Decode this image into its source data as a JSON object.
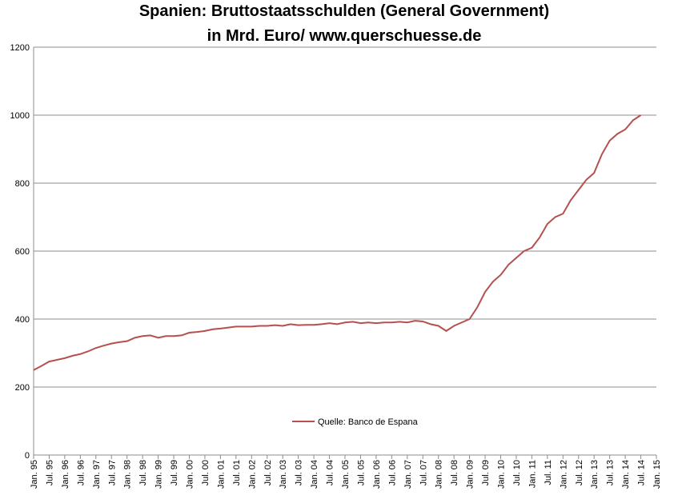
{
  "chart_data": {
    "type": "line",
    "title": [
      "Spanien: Bruttostaatsschulden (General Government)",
      "in Mrd. Euro/ www.querschuesse.de"
    ],
    "categories": [
      "Jan. 95",
      null,
      "Jul. 95",
      null,
      "Jan. 96",
      null,
      "Jul. 96",
      null,
      "Jan. 97",
      null,
      "Jul. 97",
      null,
      "Jan. 98",
      null,
      "Jul. 98",
      null,
      "Jan. 99",
      null,
      "Jul. 99",
      null,
      "Jan. 00",
      null,
      "Jul. 00",
      null,
      "Jan. 01",
      null,
      "Jul. 01",
      null,
      "Jan. 02",
      null,
      "Jul. 02",
      null,
      "Jan. 03",
      null,
      "Jul. 03",
      null,
      "Jan. 04",
      null,
      "Jul. 04",
      null,
      "Jan. 05",
      null,
      "Jul. 05",
      null,
      "Jan. 06",
      null,
      "Jul. 06",
      null,
      "Jan. 07",
      null,
      "Jul. 07",
      null,
      "Jan. 08",
      null,
      "Jul. 08",
      null,
      "Jan. 09",
      null,
      "Jul. 09",
      null,
      "Jan. 10",
      null,
      "Jul. 10",
      null,
      "Jan. 11",
      null,
      "Jul. 11",
      null,
      "Jan. 12",
      null,
      "Jul. 12",
      null,
      "Jan. 13",
      null,
      "Jul. 13",
      null,
      "Jan. 14",
      null,
      "Jul. 14",
      null,
      "Jan. 15"
    ],
    "series": [
      {
        "name": "Quelle: Banco de Espana",
        "color": "#b5504d",
        "values": [
          250,
          262,
          275,
          280,
          285,
          292,
          297,
          305,
          315,
          322,
          328,
          332,
          335,
          345,
          350,
          352,
          345,
          350,
          350,
          352,
          360,
          362,
          365,
          370,
          372,
          375,
          378,
          378,
          378,
          380,
          380,
          382,
          380,
          385,
          382,
          383,
          383,
          385,
          388,
          385,
          390,
          392,
          388,
          390,
          388,
          390,
          390,
          392,
          390,
          395,
          393,
          385,
          380,
          365,
          380,
          390,
          400,
          435,
          480,
          510,
          530,
          560,
          580,
          600,
          610,
          640,
          680,
          700,
          710,
          750,
          780,
          810,
          830,
          885,
          925,
          945,
          958,
          985,
          1000,
          null,
          null
        ]
      }
    ],
    "ylim": [
      0,
      1200
    ],
    "yticks": [
      0,
      200,
      400,
      600,
      800,
      1000,
      1200
    ],
    "grid": true
  }
}
